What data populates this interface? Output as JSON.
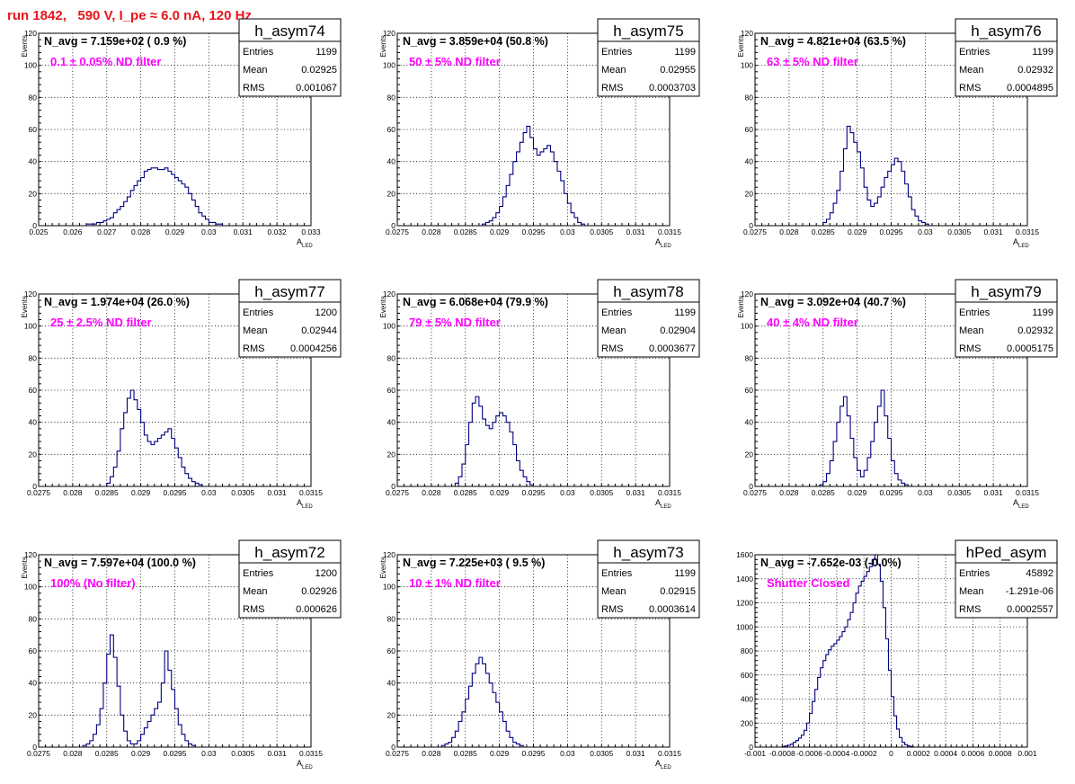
{
  "canvas_title": "run 1842,   590 V, I_pe ≈ 6.0 nA, 120 Hz",
  "colors": {
    "title": "#e8151b",
    "annotation": "#ff00ff",
    "histogram": "#000080",
    "grid": "#000000",
    "frame": "#000000",
    "background": "#ffffff"
  },
  "chart_data": [
    {
      "type": "histogram",
      "name": "h_asym74",
      "ylabel": "Events",
      "xlabel": "A",
      "xlabel_subscript": "LED",
      "xlim": [
        0.025,
        0.033
      ],
      "ylim": [
        0,
        120
      ],
      "xticks": [
        "0.025",
        "0.026",
        "0.027",
        "0.028",
        "0.029",
        "0.03",
        "0.031",
        "0.032",
        "0.033"
      ],
      "yticks": [
        "0",
        "20",
        "40",
        "60",
        "80",
        "100",
        "120"
      ],
      "navg_label": "N_avg = 7.159e+02 ( 0.9 %)",
      "annotation": "0.1 ± 0.05% ND filter",
      "stats": {
        "entries_label": "Entries",
        "entries": "1199",
        "mean_label": "Mean",
        "mean": "0.02925",
        "rms_label": "RMS",
        "rms": "0.001067"
      },
      "bins": {
        "start": 0.0264,
        "width": 0.0001,
        "counts": [
          1,
          1,
          1,
          2,
          2,
          3,
          4,
          5,
          8,
          10,
          12,
          15,
          18,
          22,
          25,
          28,
          30,
          34,
          35,
          36,
          36,
          35,
          35,
          36,
          34,
          32,
          30,
          28,
          26,
          24,
          20,
          16,
          12,
          8,
          6,
          4,
          2,
          2,
          1,
          1
        ]
      },
      "grid": true
    },
    {
      "type": "histogram",
      "name": "h_asym75",
      "ylabel": "Events",
      "xlabel": "A",
      "xlabel_subscript": "LED",
      "xlim": [
        0.0275,
        0.0315
      ],
      "ylim": [
        0,
        120
      ],
      "xticks": [
        "0.0275",
        "0.028",
        "0.0285",
        "0.029",
        "0.0295",
        "0.03",
        "0.0305",
        "0.031",
        "0.0315"
      ],
      "yticks": [
        "0",
        "20",
        "40",
        "60",
        "80",
        "100",
        "120"
      ],
      "navg_label": "N_avg = 3.859e+04 (50.8 %)",
      "annotation": "50 ± 5% ND filter",
      "stats": {
        "entries_label": "Entries",
        "entries": "1199",
        "mean_label": "Mean",
        "mean": "0.02955",
        "rms_label": "RMS",
        "rms": "0.0003703"
      },
      "bins": {
        "start": 0.02875,
        "width": 5e-05,
        "counts": [
          1,
          2,
          3,
          5,
          8,
          12,
          18,
          25,
          32,
          40,
          46,
          52,
          58,
          62,
          55,
          48,
          44,
          46,
          48,
          50,
          46,
          40,
          34,
          28,
          20,
          14,
          8,
          5,
          2,
          1
        ]
      },
      "grid": true
    },
    {
      "type": "histogram",
      "name": "h_asym76",
      "ylabel": "Events",
      "xlabel": "A",
      "xlabel_subscript": "LED",
      "xlim": [
        0.0275,
        0.0315
      ],
      "ylim": [
        0,
        120
      ],
      "xticks": [
        "0.0275",
        "0.028",
        "0.0285",
        "0.029",
        "0.0295",
        "0.03",
        "0.0305",
        "0.031",
        "0.0315"
      ],
      "yticks": [
        "0",
        "20",
        "40",
        "60",
        "80",
        "100",
        "120"
      ],
      "navg_label": "N_avg = 4.821e+04 (63.5 %)",
      "annotation": "63 ± 5% ND filter",
      "stats": {
        "entries_label": "Entries",
        "entries": "1199",
        "mean_label": "Mean",
        "mean": "0.02932",
        "rms_label": "RMS",
        "rms": "0.0004895"
      },
      "bins": {
        "start": 0.0285,
        "width": 5e-05,
        "counts": [
          2,
          4,
          8,
          14,
          22,
          34,
          48,
          62,
          58,
          52,
          46,
          36,
          24,
          16,
          12,
          14,
          18,
          24,
          30,
          34,
          38,
          42,
          40,
          34,
          26,
          18,
          10,
          6,
          3,
          2,
          1
        ]
      },
      "grid": true
    },
    {
      "type": "histogram",
      "name": "h_asym77",
      "ylabel": "Events",
      "xlabel": "A",
      "xlabel_subscript": "LED",
      "xlim": [
        0.0275,
        0.0315
      ],
      "ylim": [
        0,
        120
      ],
      "xticks": [
        "0.0275",
        "0.028",
        "0.0285",
        "0.029",
        "0.0295",
        "0.03",
        "0.0305",
        "0.031",
        "0.0315"
      ],
      "yticks": [
        "0",
        "20",
        "40",
        "60",
        "80",
        "100",
        "120"
      ],
      "navg_label": "N_avg = 1.974e+04 (26.0 %)",
      "annotation": "25 ± 2.5% ND filter",
      "stats": {
        "entries_label": "Entries",
        "entries": "1200",
        "mean_label": "Mean",
        "mean": "0.02944",
        "rms_label": "RMS",
        "rms": "0.0004256"
      },
      "bins": {
        "start": 0.0285,
        "width": 5e-05,
        "counts": [
          2,
          6,
          12,
          22,
          36,
          46,
          55,
          60,
          54,
          48,
          40,
          32,
          28,
          26,
          28,
          30,
          32,
          34,
          36,
          30,
          24,
          18,
          12,
          8,
          5,
          3,
          2,
          1
        ]
      },
      "grid": true
    },
    {
      "type": "histogram",
      "name": "h_asym78",
      "ylabel": "Events",
      "xlabel": "A",
      "xlabel_subscript": "LED",
      "xlim": [
        0.0275,
        0.0315
      ],
      "ylim": [
        0,
        120
      ],
      "xticks": [
        "0.0275",
        "0.028",
        "0.0285",
        "0.029",
        "0.0295",
        "0.03",
        "0.0305",
        "0.031",
        "0.0315"
      ],
      "yticks": [
        "0",
        "20",
        "40",
        "60",
        "80",
        "100",
        "120"
      ],
      "navg_label": "N_avg = 6.068e+04 (79.9 %)",
      "annotation": "79 ± 5% ND filter",
      "stats": {
        "entries_label": "Entries",
        "entries": "1199",
        "mean_label": "Mean",
        "mean": "0.02904",
        "rms_label": "RMS",
        "rms": "0.0003677"
      },
      "bins": {
        "start": 0.02835,
        "width": 5e-05,
        "counts": [
          2,
          6,
          14,
          26,
          40,
          52,
          56,
          50,
          42,
          38,
          36,
          40,
          44,
          46,
          44,
          40,
          34,
          26,
          16,
          10,
          6,
          3,
          1
        ]
      },
      "grid": true
    },
    {
      "type": "histogram",
      "name": "h_asym79",
      "ylabel": "Events",
      "xlabel": "A",
      "xlabel_subscript": "LED",
      "xlim": [
        0.0275,
        0.0315
      ],
      "ylim": [
        0,
        120
      ],
      "xticks": [
        "0.0275",
        "0.028",
        "0.0285",
        "0.029",
        "0.0295",
        "0.03",
        "0.0305",
        "0.031",
        "0.0315"
      ],
      "yticks": [
        "0",
        "20",
        "40",
        "60",
        "80",
        "100",
        "120"
      ],
      "navg_label": "N_avg = 3.092e+04 (40.7 %)",
      "annotation": "40 ± 4% ND filter",
      "stats": {
        "entries_label": "Entries",
        "entries": "1199",
        "mean_label": "Mean",
        "mean": "0.02932",
        "rms_label": "RMS",
        "rms": "0.0005175"
      },
      "bins": {
        "start": 0.02845,
        "width": 5e-05,
        "counts": [
          1,
          3,
          8,
          16,
          28,
          40,
          50,
          56,
          44,
          30,
          18,
          10,
          6,
          10,
          18,
          28,
          40,
          50,
          60,
          44,
          30,
          16,
          8,
          4,
          2,
          1
        ]
      },
      "grid": true
    },
    {
      "type": "histogram",
      "name": "h_asym72",
      "ylabel": "Events",
      "xlabel": "A",
      "xlabel_subscript": "LED",
      "xlim": [
        0.0275,
        0.0315
      ],
      "ylim": [
        0,
        120
      ],
      "xticks": [
        "0.0275",
        "0.028",
        "0.0285",
        "0.029",
        "0.0295",
        "0.03",
        "0.0305",
        "0.031",
        "0.0315"
      ],
      "yticks": [
        "0",
        "20",
        "40",
        "60",
        "80",
        "100",
        "120"
      ],
      "navg_label": "N_avg = 7.597e+04 (100.0 %)",
      "annotation": "100% (No filter)",
      "stats": {
        "entries_label": "Entries",
        "entries": "1200",
        "mean_label": "Mean",
        "mean": "0.02926",
        "rms_label": "RMS",
        "rms": "0.000626"
      },
      "bins": {
        "start": 0.02815,
        "width": 5e-05,
        "counts": [
          1,
          2,
          4,
          8,
          14,
          24,
          40,
          58,
          70,
          56,
          38,
          20,
          10,
          4,
          2,
          2,
          4,
          8,
          12,
          16,
          20,
          24,
          28,
          40,
          60,
          48,
          36,
          24,
          14,
          8,
          4,
          2,
          1
        ]
      },
      "grid": true
    },
    {
      "type": "histogram",
      "name": "h_asym73",
      "ylabel": "Events",
      "xlabel": "A",
      "xlabel_subscript": "LED",
      "xlim": [
        0.0275,
        0.0315
      ],
      "ylim": [
        0,
        120
      ],
      "xticks": [
        "0.0275",
        "0.028",
        "0.0285",
        "0.029",
        "0.0295",
        "0.03",
        "0.0305",
        "0.031",
        "0.0315"
      ],
      "yticks": [
        "0",
        "20",
        "40",
        "60",
        "80",
        "100",
        "120"
      ],
      "navg_label": "N_avg = 7.225e+03 ( 9.5 %)",
      "annotation": "10 ± 1% ND filter",
      "stats": {
        "entries_label": "Entries",
        "entries": "1199",
        "mean_label": "Mean",
        "mean": "0.02915",
        "rms_label": "RMS",
        "rms": "0.0003614"
      },
      "bins": {
        "start": 0.02815,
        "width": 5e-05,
        "counts": [
          1,
          2,
          3,
          6,
          10,
          16,
          22,
          30,
          38,
          46,
          52,
          56,
          52,
          46,
          40,
          34,
          28,
          22,
          16,
          10,
          6,
          3,
          2,
          1
        ]
      },
      "grid": true
    },
    {
      "type": "histogram",
      "name": "hPed_asym",
      "ylabel": "",
      "xlabel": "",
      "xlabel_subscript": "",
      "xlim": [
        -0.001,
        0.001
      ],
      "ylim": [
        0,
        1600
      ],
      "xticks": [
        "-0.001",
        "-0.0008",
        "-0.0006",
        "-0.0004",
        "-0.0002",
        "0",
        "0.0002",
        "0.0004",
        "0.0006",
        "0.0008",
        "0.001"
      ],
      "yticks": [
        "0",
        "200",
        "400",
        "600",
        "800",
        "1000",
        "1200",
        "1400",
        "1600"
      ],
      "navg_label": "N_avg = -7.652e-03 (-0.0%)",
      "annotation": "Shutter Closed",
      "stats": {
        "entries_label": "Entries",
        "entries": "45892",
        "mean_label": "Mean",
        "mean": "-1.291e-06",
        "rms_label": "RMS",
        "rms": "0.0002557"
      },
      "bins": {
        "start": -0.0008,
        "width": 2e-05,
        "counts": [
          5,
          10,
          15,
          25,
          40,
          55,
          75,
          100,
          140,
          200,
          280,
          380,
          480,
          580,
          660,
          720,
          770,
          810,
          840,
          860,
          890,
          920,
          960,
          1000,
          1060,
          1120,
          1200,
          1280,
          1340,
          1380,
          1420,
          1460,
          1500,
          1560,
          1600,
          1520,
          1380,
          1160,
          900,
          640,
          420,
          260,
          150,
          80,
          40,
          20,
          10,
          5
        ]
      },
      "grid": true
    }
  ]
}
